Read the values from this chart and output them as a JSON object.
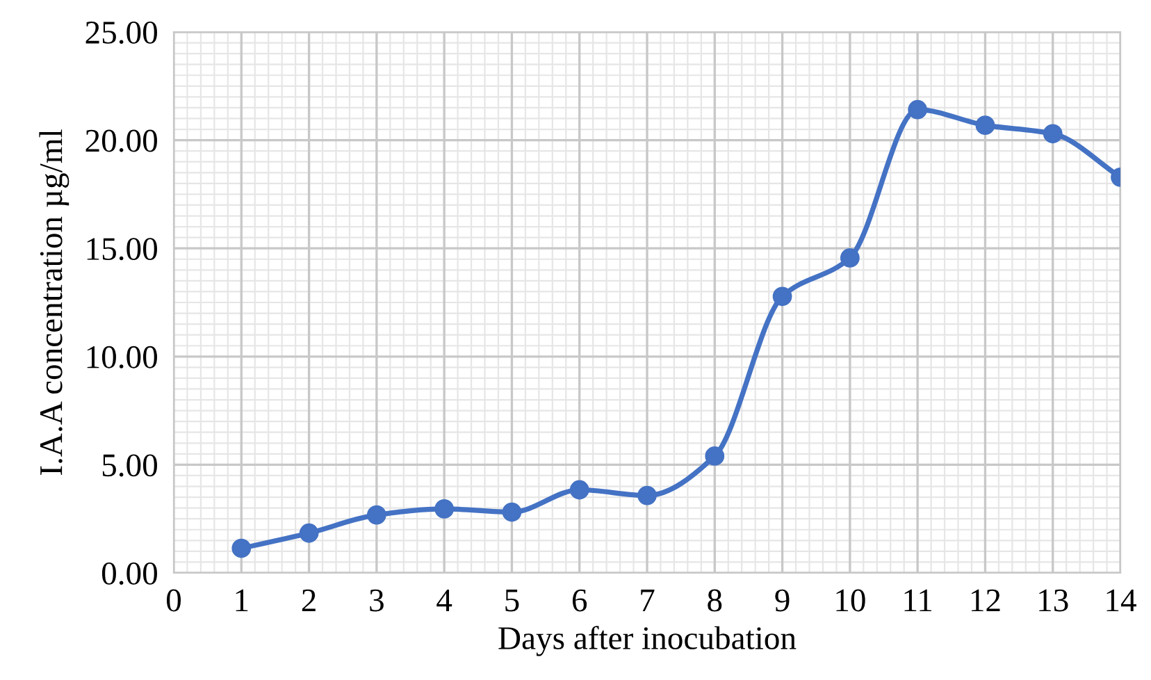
{
  "chart_data": {
    "type": "line",
    "xlabel": "Days after inocubation",
    "ylabel": "I.A.A concentration µg/ml",
    "x": [
      1,
      2,
      3,
      4,
      5,
      6,
      7,
      8,
      9,
      10,
      11,
      12,
      13,
      14
    ],
    "series": [
      {
        "color": "#4472c4",
        "values": [
          1.14,
          1.84,
          2.68,
          2.96,
          2.81,
          3.84,
          3.58,
          5.4,
          12.78,
          14.56,
          21.41,
          20.69,
          20.3,
          18.29
        ]
      }
    ],
    "xlim": [
      0,
      14
    ],
    "xticks": [
      0,
      1,
      2,
      3,
      4,
      5,
      6,
      7,
      8,
      9,
      10,
      11,
      12,
      13,
      14
    ],
    "ylim": [
      0,
      25
    ],
    "yticks": [
      {
        "value": 0,
        "label": "0.00"
      },
      {
        "value": 5,
        "label": "5.00"
      },
      {
        "value": 10,
        "label": "10.00"
      },
      {
        "value": 15,
        "label": "15.00"
      },
      {
        "value": 20,
        "label": "20.00"
      },
      {
        "value": 25,
        "label": "25.00"
      }
    ],
    "grid": true,
    "marker": "circle",
    "line_style": "solid"
  }
}
